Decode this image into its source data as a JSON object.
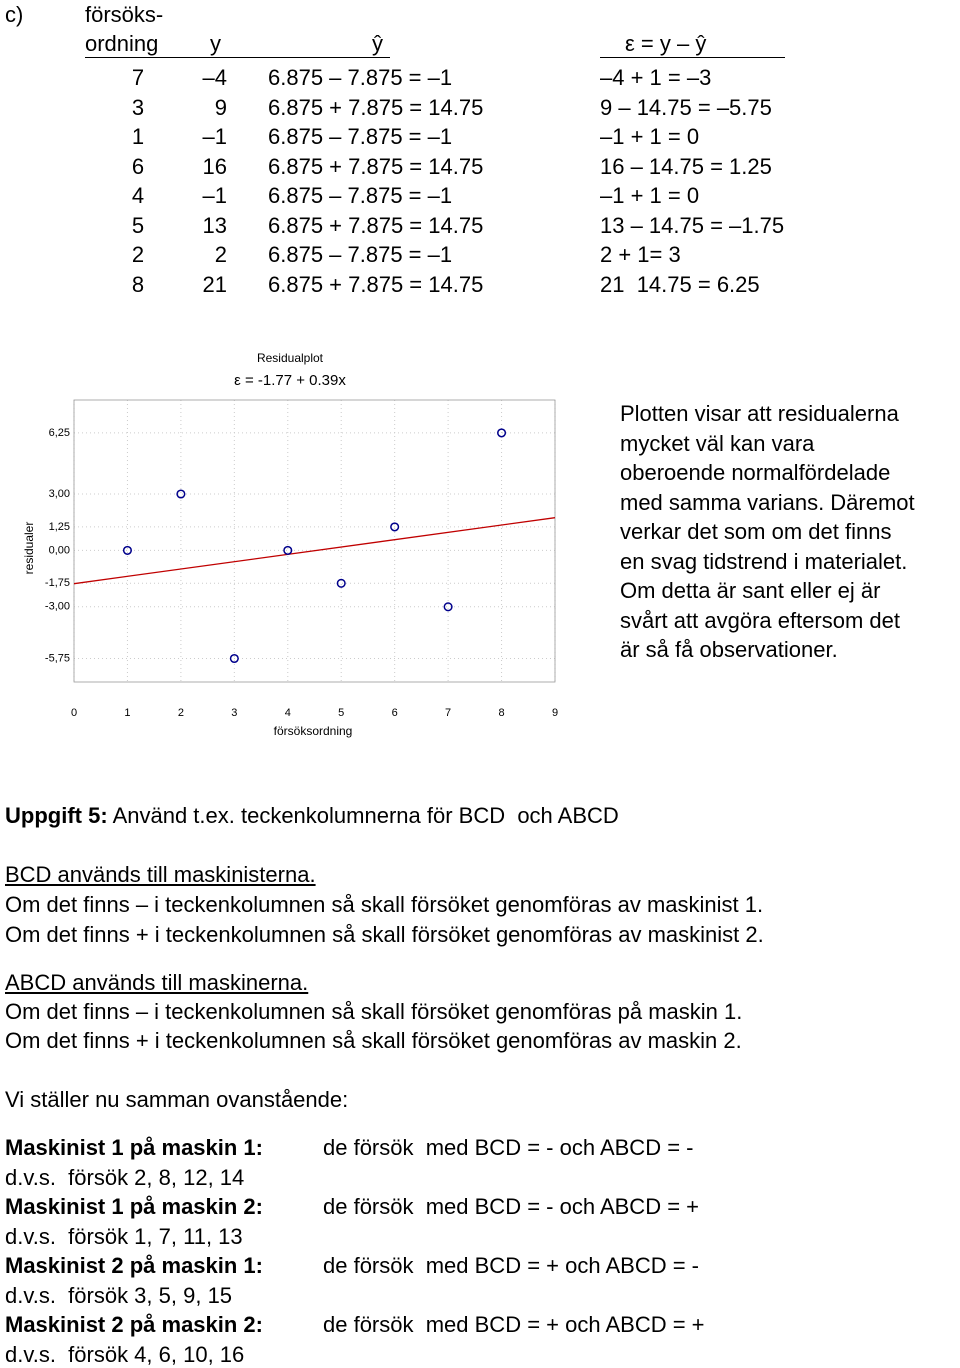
{
  "section_c": {
    "label": "c)",
    "header": {
      "col1_line1": "försöks-",
      "col1_line2": "ordning",
      "col2": "y",
      "col3": "ŷ",
      "col4": "ε = y – ŷ"
    },
    "rows": [
      [
        "7",
        "–4",
        "6.875 – 7.875 = –1",
        "–4 + 1 = –3"
      ],
      [
        "3",
        "9",
        "6.875 + 7.875 = 14.75",
        "9 – 14.75 = –5.75"
      ],
      [
        "1",
        "–1",
        "6.875 – 7.875 = –1",
        "–1 + 1 = 0"
      ],
      [
        "6",
        "16",
        "6.875 + 7.875 = 14.75",
        "16 – 14.75 = 1.25"
      ],
      [
        "4",
        "–1",
        "6.875 – 7.875 = –1",
        "–1 + 1 = 0"
      ],
      [
        "5",
        "13",
        "6.875 + 7.875 = 14.75",
        "13 – 14.75 = –1.75"
      ],
      [
        "2",
        "2",
        "6.875 – 7.875 = –1",
        "2 + 1= 3"
      ],
      [
        "8",
        "21",
        "6.875 + 7.875 = 14.75",
        "21  14.75 = 6.25"
      ]
    ]
  },
  "chart_data": {
    "type": "scatter",
    "title": "Residualplot",
    "subtitle": "ε = -1.77 + 0.39x",
    "x_label": "försöksordning",
    "y_label": "residualer",
    "xlim": [
      0,
      9
    ],
    "ylim": [
      -7,
      8
    ],
    "xticks": [
      0,
      1,
      2,
      3,
      4,
      5,
      6,
      7,
      8,
      9
    ],
    "yticks": [
      {
        "value": 6.25,
        "label": "6,25"
      },
      {
        "value": 3,
        "label": "3,00"
      },
      {
        "value": 1.25,
        "label": "1,25"
      },
      {
        "value": 0,
        "label": "0,00"
      },
      {
        "value": -1.75,
        "label": "-1,75"
      },
      {
        "value": -3,
        "label": "-3,00"
      },
      {
        "value": -5.75,
        "label": "-5,75"
      }
    ],
    "grid": true,
    "series": [
      {
        "color": "#00008b",
        "x": [
          1,
          2,
          3,
          4,
          5,
          6,
          7,
          8
        ],
        "values": [
          0,
          3,
          -5.75,
          0,
          -1.75,
          1.25,
          -3,
          6.25
        ]
      }
    ],
    "fit": {
      "color": "#c00000",
      "x": [
        0,
        9
      ],
      "values": [
        -1.77,
        1.74
      ]
    }
  },
  "chart_note": {
    "lines": [
      "Plotten visar att residualerna",
      "mycket väl kan vara",
      "oberoende normalfördelade",
      "med samma varians. Däremot",
      "verkar det som om det finns",
      "en svag tidstrend i materialet.",
      "Om detta är sant eller ej är",
      "svårt att avgöra eftersom det",
      "är så få observationer."
    ]
  },
  "task": {
    "heading_label": "Uppgift 5:",
    "heading_text": "Använd t.ex. teckenkolumnerna för BCD  och ABCD",
    "bcd_title": "BCD används till maskinisterna.",
    "bcd_lines": [
      "Om det finns – i teckenkolumnen så skall försöket genomföras av maskinist 1.",
      "Om det finns + i teckenkolumnen så skall försöket genomföras av maskinist 2."
    ],
    "abcd_title": "ABCD används till maskinerna.",
    "abcd_lines": [
      "Om det finns – i teckenkolumnen så skall försöket genomföras på maskin 1.",
      "Om det finns + i teckenkolumnen så skall försöket genomföras av maskin 2."
    ],
    "summary_intro": "Vi ställer nu samman ovanstående:",
    "summary": [
      {
        "label": "Maskinist 1 på maskin 1:",
        "text": "de försök  med BCD = - och ABCD = -",
        "detail": "d.v.s.  försök 2, 8, 12, 14"
      },
      {
        "label": "Maskinist 1 på maskin 2:",
        "text": "de försök  med BCD = - och ABCD = +",
        "detail": "d.v.s.  försök 1, 7, 11, 13"
      },
      {
        "label": "Maskinist 2 på maskin 1:",
        "text": "de försök  med BCD = + och ABCD = -",
        "detail": "d.v.s.  försök 3, 5, 9, 15"
      },
      {
        "label": "Maskinist 2 på maskin 2:",
        "text": "de försök  med BCD = + och ABCD = +",
        "detail": "d.v.s.  försök 4, 6, 10, 16"
      }
    ]
  }
}
